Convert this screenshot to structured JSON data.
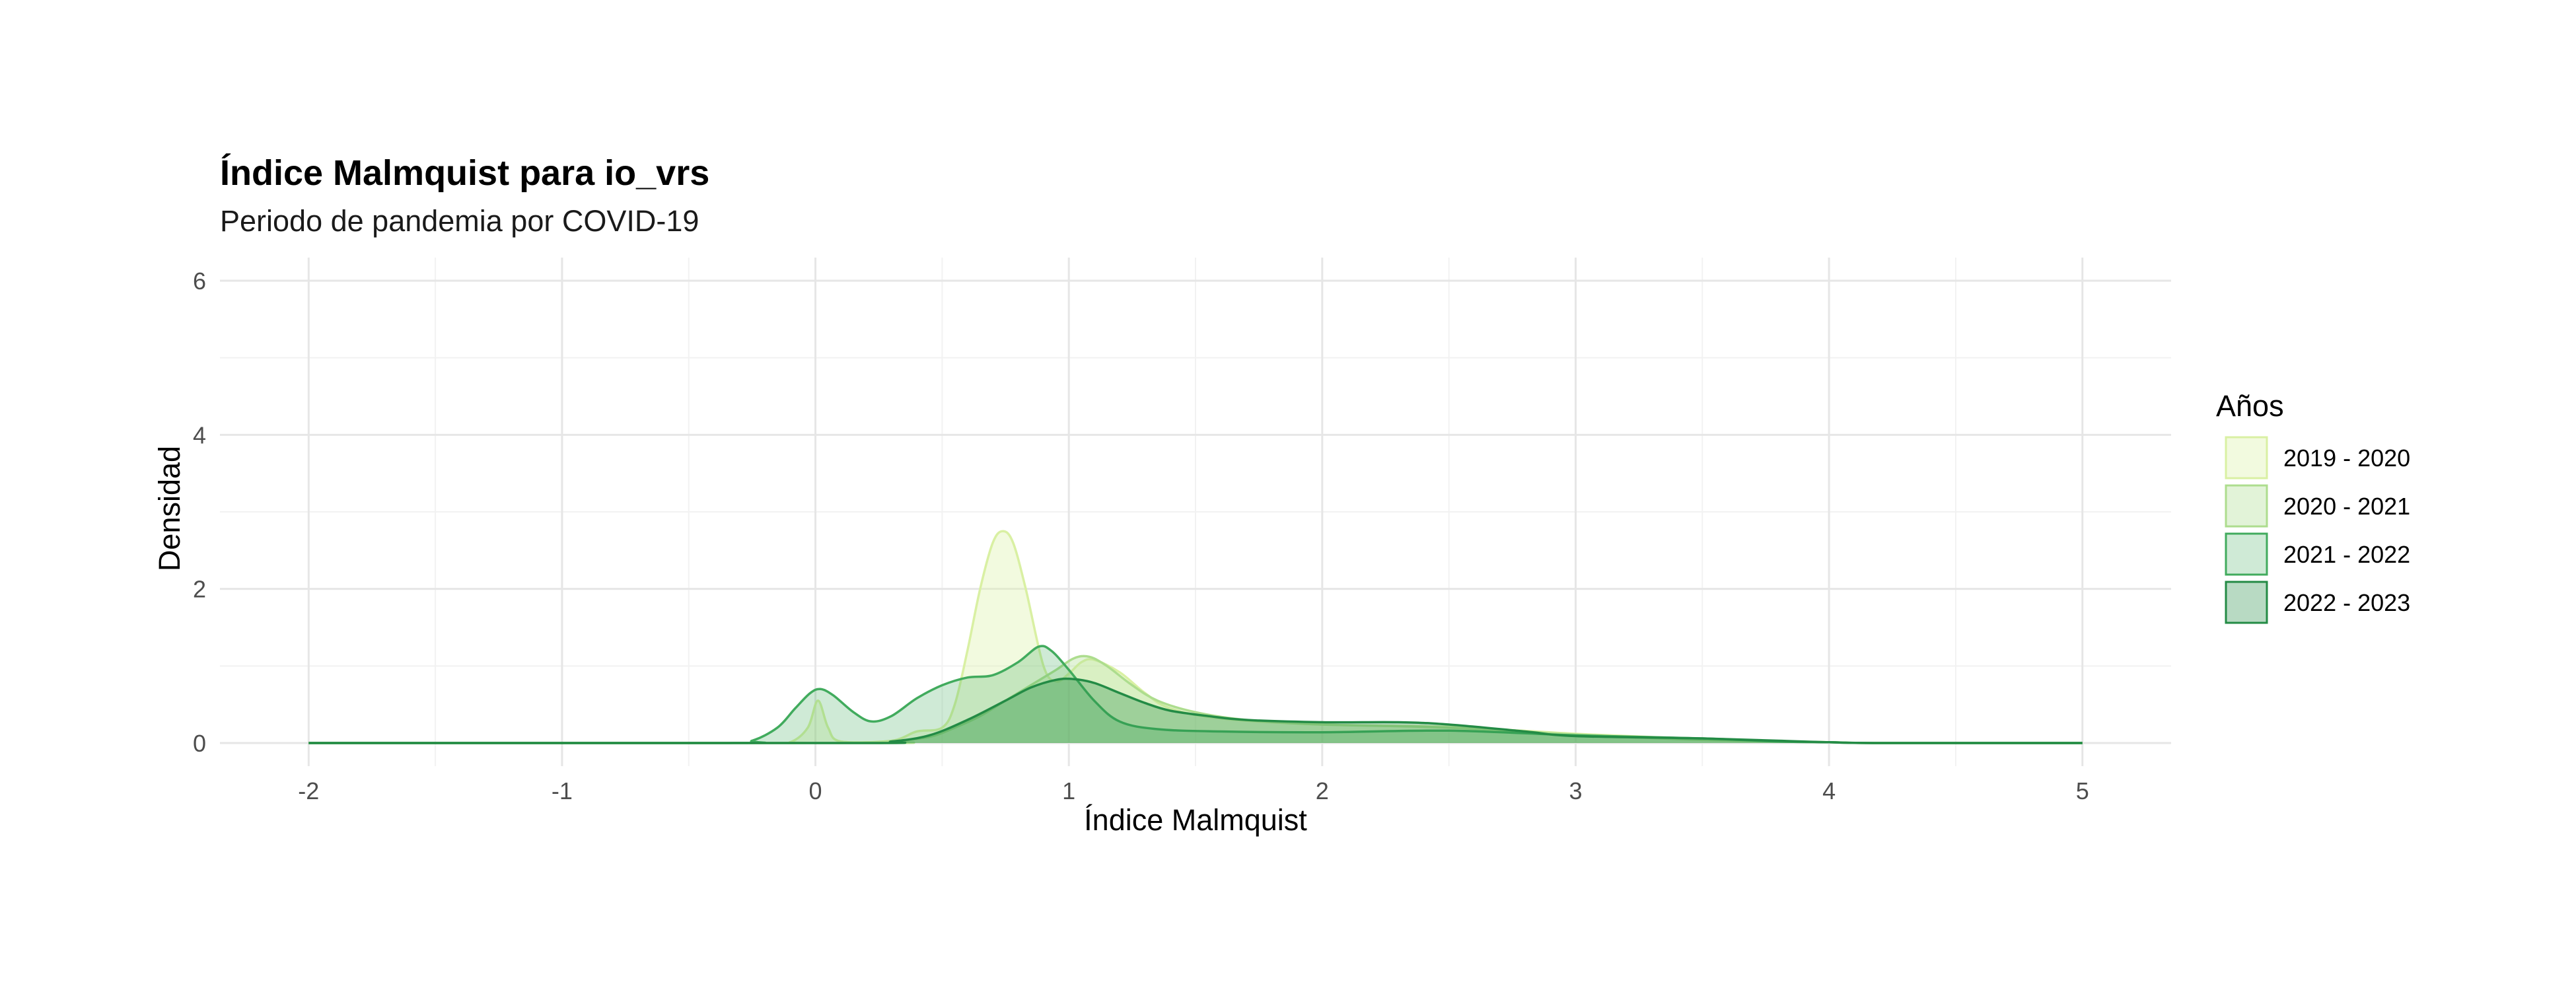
{
  "chart_data": {
    "type": "area",
    "title": "Índice Malmquist para io_vrs",
    "subtitle": "Periodo de pandemia por COVID-19",
    "xlabel": "Índice Malmquist",
    "ylabel": "Densidad",
    "xlim": [
      -2.35,
      5.35
    ],
    "ylim": [
      -0.3,
      6.3
    ],
    "xticks": [
      -2,
      -1,
      0,
      1,
      2,
      3,
      4,
      5
    ],
    "yticks": [
      0,
      2,
      4,
      6
    ],
    "grid": true,
    "legend": {
      "title": "Años",
      "position": "right"
    },
    "series": [
      {
        "name": "2019 - 2020",
        "color": "#d9f0a3",
        "fill_opacity": 0.35,
        "points": [
          [
            -2,
            0
          ],
          [
            -0.2,
            0
          ],
          [
            -0.1,
            0.01
          ],
          [
            -0.03,
            0.2
          ],
          [
            0.01,
            0.55
          ],
          [
            0.05,
            0.2
          ],
          [
            0.1,
            0.02
          ],
          [
            0.3,
            0.03
          ],
          [
            0.4,
            0.15
          ],
          [
            0.5,
            0.2
          ],
          [
            0.55,
            0.5
          ],
          [
            0.6,
            1.2
          ],
          [
            0.65,
            2.0
          ],
          [
            0.7,
            2.6
          ],
          [
            0.74,
            2.75
          ],
          [
            0.78,
            2.6
          ],
          [
            0.83,
            2.0
          ],
          [
            0.9,
            1.0
          ],
          [
            0.95,
            0.8
          ],
          [
            1.0,
            0.9
          ],
          [
            1.05,
            1.05
          ],
          [
            1.1,
            1.08
          ],
          [
            1.2,
            0.92
          ],
          [
            1.3,
            0.65
          ],
          [
            1.4,
            0.45
          ],
          [
            1.6,
            0.32
          ],
          [
            2.0,
            0.24
          ],
          [
            2.5,
            0.21
          ],
          [
            3.0,
            0.12
          ],
          [
            3.5,
            0.05
          ],
          [
            4.0,
            0.01
          ],
          [
            4.2,
            0
          ],
          [
            5,
            0
          ]
        ]
      },
      {
        "name": "2020 - 2021",
        "color": "#addd8e",
        "fill_opacity": 0.35,
        "points": [
          [
            -2,
            0
          ],
          [
            0.2,
            0
          ],
          [
            0.3,
            0.02
          ],
          [
            0.45,
            0.08
          ],
          [
            0.55,
            0.2
          ],
          [
            0.65,
            0.35
          ],
          [
            0.75,
            0.55
          ],
          [
            0.85,
            0.75
          ],
          [
            0.95,
            0.95
          ],
          [
            1.02,
            1.1
          ],
          [
            1.08,
            1.12
          ],
          [
            1.15,
            1.0
          ],
          [
            1.25,
            0.75
          ],
          [
            1.35,
            0.55
          ],
          [
            1.5,
            0.4
          ],
          [
            1.7,
            0.3
          ],
          [
            2.0,
            0.24
          ],
          [
            2.5,
            0.2
          ],
          [
            3.0,
            0.11
          ],
          [
            3.5,
            0.04
          ],
          [
            4.0,
            0.01
          ],
          [
            4.2,
            0
          ],
          [
            5,
            0
          ]
        ]
      },
      {
        "name": "2021 - 2022",
        "color": "#41ab5d",
        "fill_opacity": 0.25,
        "points": [
          [
            -2,
            0
          ],
          [
            -0.35,
            0
          ],
          [
            -0.25,
            0.03
          ],
          [
            -0.15,
            0.2
          ],
          [
            -0.08,
            0.45
          ],
          [
            -0.02,
            0.65
          ],
          [
            0.02,
            0.7
          ],
          [
            0.07,
            0.62
          ],
          [
            0.15,
            0.4
          ],
          [
            0.22,
            0.28
          ],
          [
            0.3,
            0.35
          ],
          [
            0.4,
            0.58
          ],
          [
            0.5,
            0.75
          ],
          [
            0.6,
            0.85
          ],
          [
            0.7,
            0.88
          ],
          [
            0.8,
            1.05
          ],
          [
            0.88,
            1.25
          ],
          [
            0.93,
            1.2
          ],
          [
            1.0,
            0.95
          ],
          [
            1.1,
            0.55
          ],
          [
            1.2,
            0.28
          ],
          [
            1.35,
            0.18
          ],
          [
            1.6,
            0.15
          ],
          [
            2.0,
            0.14
          ],
          [
            2.5,
            0.16
          ],
          [
            3.0,
            0.1
          ],
          [
            3.5,
            0.06
          ],
          [
            3.8,
            0.02
          ],
          [
            4.0,
            0.01
          ],
          [
            4.2,
            0
          ],
          [
            5,
            0
          ]
        ]
      },
      {
        "name": "2022 - 2023",
        "color": "#238b45",
        "fill_opacity": 0.32,
        "points": [
          [
            -2,
            0
          ],
          [
            0.15,
            0
          ],
          [
            0.3,
            0.02
          ],
          [
            0.45,
            0.1
          ],
          [
            0.6,
            0.3
          ],
          [
            0.75,
            0.55
          ],
          [
            0.85,
            0.72
          ],
          [
            0.95,
            0.82
          ],
          [
            1.02,
            0.83
          ],
          [
            1.1,
            0.78
          ],
          [
            1.2,
            0.65
          ],
          [
            1.3,
            0.52
          ],
          [
            1.4,
            0.42
          ],
          [
            1.55,
            0.35
          ],
          [
            1.7,
            0.3
          ],
          [
            2.0,
            0.27
          ],
          [
            2.3,
            0.27
          ],
          [
            2.5,
            0.24
          ],
          [
            2.8,
            0.15
          ],
          [
            3.0,
            0.09
          ],
          [
            3.5,
            0.06
          ],
          [
            3.8,
            0.03
          ],
          [
            4.0,
            0.01
          ],
          [
            4.2,
            0
          ],
          [
            5,
            0
          ]
        ]
      }
    ]
  }
}
